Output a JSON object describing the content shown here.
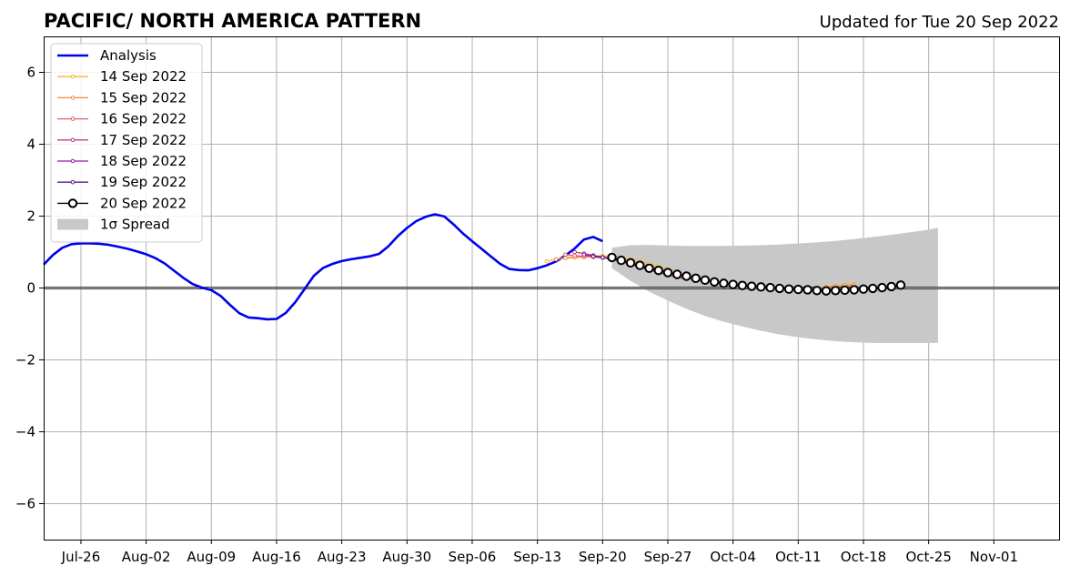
{
  "chart_data": {
    "type": "line",
    "title": "PACIFIC/ NORTH AMERICA PATTERN",
    "subtitle": "Updated for Tue 20 Sep 2022",
    "xlabel": "",
    "ylabel": "",
    "x_tick_labels": [
      "Jul-26",
      "Aug-02",
      "Aug-09",
      "Aug-16",
      "Aug-23",
      "Aug-30",
      "Sep-06",
      "Sep-13",
      "Sep-20",
      "Sep-27",
      "Oct-04",
      "Oct-11",
      "Oct-18",
      "Oct-25",
      "Nov-01"
    ],
    "x_tick_dates": [
      "2022-07-26",
      "2022-08-02",
      "2022-08-09",
      "2022-08-16",
      "2022-08-23",
      "2022-08-30",
      "2022-09-06",
      "2022-09-13",
      "2022-09-20",
      "2022-09-27",
      "2022-10-04",
      "2022-10-11",
      "2022-10-18",
      "2022-10-25",
      "2022-11-01"
    ],
    "y_tick_labels": [
      "−6",
      "−4",
      "−2",
      "0",
      "2",
      "4",
      "6"
    ],
    "y_tick_values": [
      -6,
      -4,
      -2,
      0,
      2,
      4,
      6
    ],
    "xlim": [
      "2022-07-22",
      "2022-11-08"
    ],
    "ylim": [
      -7,
      7
    ],
    "grid": true,
    "zero_line": true,
    "legend_position": "upper-left",
    "spread": {
      "name": "1σ Spread",
      "color": "#c8c8c8",
      "dates": [
        "2022-09-21",
        "2022-09-23",
        "2022-09-25",
        "2022-09-27",
        "2022-09-29",
        "2022-10-01",
        "2022-10-03",
        "2022-10-05",
        "2022-10-07",
        "2022-10-09",
        "2022-10-11",
        "2022-10-13",
        "2022-10-15",
        "2022-10-17",
        "2022-10-19",
        "2022-10-21",
        "2022-10-23",
        "2022-10-25",
        "2022-10-26"
      ],
      "upper": [
        1.12,
        1.19,
        1.2,
        1.18,
        1.17,
        1.17,
        1.17,
        1.18,
        1.19,
        1.21,
        1.24,
        1.27,
        1.31,
        1.36,
        1.42,
        1.48,
        1.55,
        1.62,
        1.68
      ],
      "lower": [
        0.55,
        0.2,
        -0.1,
        -0.35,
        -0.58,
        -0.78,
        -0.94,
        -1.07,
        -1.19,
        -1.29,
        -1.37,
        -1.43,
        -1.48,
        -1.51,
        -1.53,
        -1.53,
        -1.53,
        -1.53,
        -1.53
      ]
    },
    "series": [
      {
        "name": "Analysis",
        "color": "#0000ee",
        "dates": [
          "2022-07-22",
          "2022-07-23",
          "2022-07-24",
          "2022-07-25",
          "2022-07-26",
          "2022-07-27",
          "2022-07-28",
          "2022-07-29",
          "2022-07-30",
          "2022-07-31",
          "2022-08-01",
          "2022-08-02",
          "2022-08-03",
          "2022-08-04",
          "2022-08-05",
          "2022-08-06",
          "2022-08-07",
          "2022-08-08",
          "2022-08-09",
          "2022-08-10",
          "2022-08-11",
          "2022-08-12",
          "2022-08-13",
          "2022-08-14",
          "2022-08-15",
          "2022-08-16",
          "2022-08-17",
          "2022-08-18",
          "2022-08-19",
          "2022-08-20",
          "2022-08-21",
          "2022-08-22",
          "2022-08-23",
          "2022-08-24",
          "2022-08-25",
          "2022-08-26",
          "2022-08-27",
          "2022-08-28",
          "2022-08-29",
          "2022-08-30",
          "2022-08-31",
          "2022-09-01",
          "2022-09-02",
          "2022-09-03",
          "2022-09-04",
          "2022-09-05",
          "2022-09-06",
          "2022-09-07",
          "2022-09-08",
          "2022-09-09",
          "2022-09-10",
          "2022-09-11",
          "2022-09-12",
          "2022-09-13",
          "2022-09-14",
          "2022-09-15",
          "2022-09-16",
          "2022-09-17",
          "2022-09-18",
          "2022-09-19",
          "2022-09-20"
        ],
        "values": [
          0.65,
          0.92,
          1.12,
          1.22,
          1.24,
          1.24,
          1.23,
          1.2,
          1.15,
          1.09,
          1.02,
          0.94,
          0.83,
          0.68,
          0.48,
          0.28,
          0.11,
          0.01,
          -0.06,
          -0.22,
          -0.47,
          -0.7,
          -0.82,
          -0.84,
          -0.87,
          -0.86,
          -0.69,
          -0.4,
          -0.03,
          0.34,
          0.56,
          0.67,
          0.75,
          0.8,
          0.84,
          0.88,
          0.95,
          1.16,
          1.44,
          1.67,
          1.86,
          1.98,
          2.05,
          1.99,
          1.77,
          1.52,
          1.3,
          1.09,
          0.88,
          0.67,
          0.53,
          0.5,
          0.49,
          0.55,
          0.63,
          0.74,
          0.9,
          1.1,
          1.35,
          1.42,
          1.3
        ]
      },
      {
        "name": "14 Sep 2022",
        "color": "#f9b731",
        "dates": [
          "2022-09-14",
          "2022-09-15",
          "2022-09-16",
          "2022-09-17",
          "2022-09-18",
          "2022-09-19",
          "2022-09-20",
          "2022-09-21",
          "2022-09-22",
          "2022-09-23",
          "2022-09-24",
          "2022-09-25",
          "2022-09-26",
          "2022-09-27",
          "2022-09-28",
          "2022-09-29",
          "2022-09-30",
          "2022-10-01",
          "2022-10-02",
          "2022-10-03",
          "2022-10-04",
          "2022-10-05",
          "2022-10-06",
          "2022-10-07",
          "2022-10-08",
          "2022-10-09",
          "2022-10-10",
          "2022-10-11",
          "2022-10-12",
          "2022-10-13",
          "2022-10-14",
          "2022-10-15",
          "2022-10-16",
          "2022-10-17"
        ],
        "values": [
          0.74,
          0.8,
          0.84,
          0.87,
          0.88,
          0.89,
          0.89,
          0.88,
          0.85,
          0.8,
          0.74,
          0.67,
          0.6,
          0.52,
          0.45,
          0.38,
          0.32,
          0.26,
          0.21,
          0.16,
          0.12,
          0.08,
          0.05,
          0.02,
          0.0,
          -0.02,
          -0.03,
          -0.03,
          -0.02,
          0.0,
          0.03,
          0.06,
          0.09,
          0.11
        ]
      },
      {
        "name": "15 Sep 2022",
        "color": "#f58a40",
        "dates": [
          "2022-09-15",
          "2022-09-16",
          "2022-09-17",
          "2022-09-18",
          "2022-09-19",
          "2022-09-20",
          "2022-09-21",
          "2022-09-22",
          "2022-09-23",
          "2022-09-24",
          "2022-09-25",
          "2022-09-26",
          "2022-09-27",
          "2022-09-28",
          "2022-09-29",
          "2022-09-30",
          "2022-10-01",
          "2022-10-02",
          "2022-10-03",
          "2022-10-04",
          "2022-10-05",
          "2022-10-06",
          "2022-10-07",
          "2022-10-08",
          "2022-10-09",
          "2022-10-10",
          "2022-10-11",
          "2022-10-12",
          "2022-10-13",
          "2022-10-14",
          "2022-10-15",
          "2022-10-16",
          "2022-10-17"
        ],
        "values": [
          0.8,
          0.83,
          0.85,
          0.86,
          0.87,
          0.86,
          0.84,
          0.8,
          0.75,
          0.68,
          0.61,
          0.54,
          0.47,
          0.4,
          0.33,
          0.27,
          0.21,
          0.16,
          0.11,
          0.07,
          0.03,
          0.0,
          -0.02,
          -0.04,
          -0.05,
          -0.05,
          -0.04,
          -0.02,
          0.0,
          0.02,
          0.05,
          0.07,
          0.08
        ]
      },
      {
        "name": "16 Sep 2022",
        "color": "#e35f6a",
        "dates": [
          "2022-09-16",
          "2022-09-17",
          "2022-09-18",
          "2022-09-19",
          "2022-09-20",
          "2022-09-21",
          "2022-09-22",
          "2022-09-23",
          "2022-09-24",
          "2022-09-25",
          "2022-09-26",
          "2022-09-27",
          "2022-09-28",
          "2022-09-29",
          "2022-09-30",
          "2022-10-01"
        ],
        "values": [
          0.93,
          0.9,
          0.88,
          0.86,
          0.84,
          0.8,
          0.74,
          0.67,
          0.6,
          0.52,
          0.45,
          0.39,
          0.33,
          0.27,
          0.22,
          0.17
        ]
      },
      {
        "name": "17 Sep 2022",
        "color": "#c23f8a",
        "dates": [
          "2022-09-17",
          "2022-09-18",
          "2022-09-19",
          "2022-09-20",
          "2022-09-21",
          "2022-09-22",
          "2022-09-23",
          "2022-09-24",
          "2022-09-25",
          "2022-09-26",
          "2022-09-27",
          "2022-09-28",
          "2022-09-29"
        ],
        "values": [
          1.0,
          0.96,
          0.91,
          0.86,
          0.8,
          0.73,
          0.66,
          0.58,
          0.5,
          0.43,
          0.36,
          0.3,
          0.25
        ]
      },
      {
        "name": "18 Sep 2022",
        "color": "#9a1aa6",
        "dates": [
          "2022-09-18",
          "2022-09-19",
          "2022-09-20",
          "2022-09-21",
          "2022-09-22",
          "2022-09-23",
          "2022-09-24",
          "2022-09-25",
          "2022-09-26",
          "2022-09-27"
        ],
        "values": [
          0.93,
          0.89,
          0.85,
          0.8,
          0.74,
          0.67,
          0.6,
          0.52,
          0.45,
          0.39
        ]
      },
      {
        "name": "19 Sep 2022",
        "color": "#5a188c",
        "dates": [
          "2022-09-19",
          "2022-09-20",
          "2022-09-21",
          "2022-09-22",
          "2022-09-23",
          "2022-09-24",
          "2022-09-25"
        ],
        "values": [
          0.88,
          0.85,
          0.81,
          0.75,
          0.68,
          0.6,
          0.52
        ]
      },
      {
        "name": "20 Sep 2022",
        "color": "#000000",
        "dates": [
          "2022-09-21",
          "2022-09-22",
          "2022-09-23",
          "2022-09-24",
          "2022-09-25",
          "2022-09-26",
          "2022-09-27",
          "2022-09-28",
          "2022-09-29",
          "2022-09-30",
          "2022-10-01",
          "2022-10-02",
          "2022-10-03",
          "2022-10-04",
          "2022-10-05",
          "2022-10-06",
          "2022-10-07",
          "2022-10-08",
          "2022-10-09",
          "2022-10-10",
          "2022-10-11",
          "2022-10-12",
          "2022-10-13",
          "2022-10-14",
          "2022-10-15",
          "2022-10-16",
          "2022-10-17",
          "2022-10-18",
          "2022-10-19",
          "2022-10-20",
          "2022-10-21",
          "2022-10-22"
        ],
        "values": [
          0.85,
          0.77,
          0.7,
          0.63,
          0.55,
          0.49,
          0.43,
          0.38,
          0.33,
          0.27,
          0.22,
          0.17,
          0.13,
          0.1,
          0.07,
          0.05,
          0.03,
          0.01,
          -0.01,
          -0.03,
          -0.04,
          -0.05,
          -0.07,
          -0.08,
          -0.07,
          -0.06,
          -0.05,
          -0.03,
          -0.01,
          0.01,
          0.04,
          0.08
        ]
      }
    ]
  }
}
